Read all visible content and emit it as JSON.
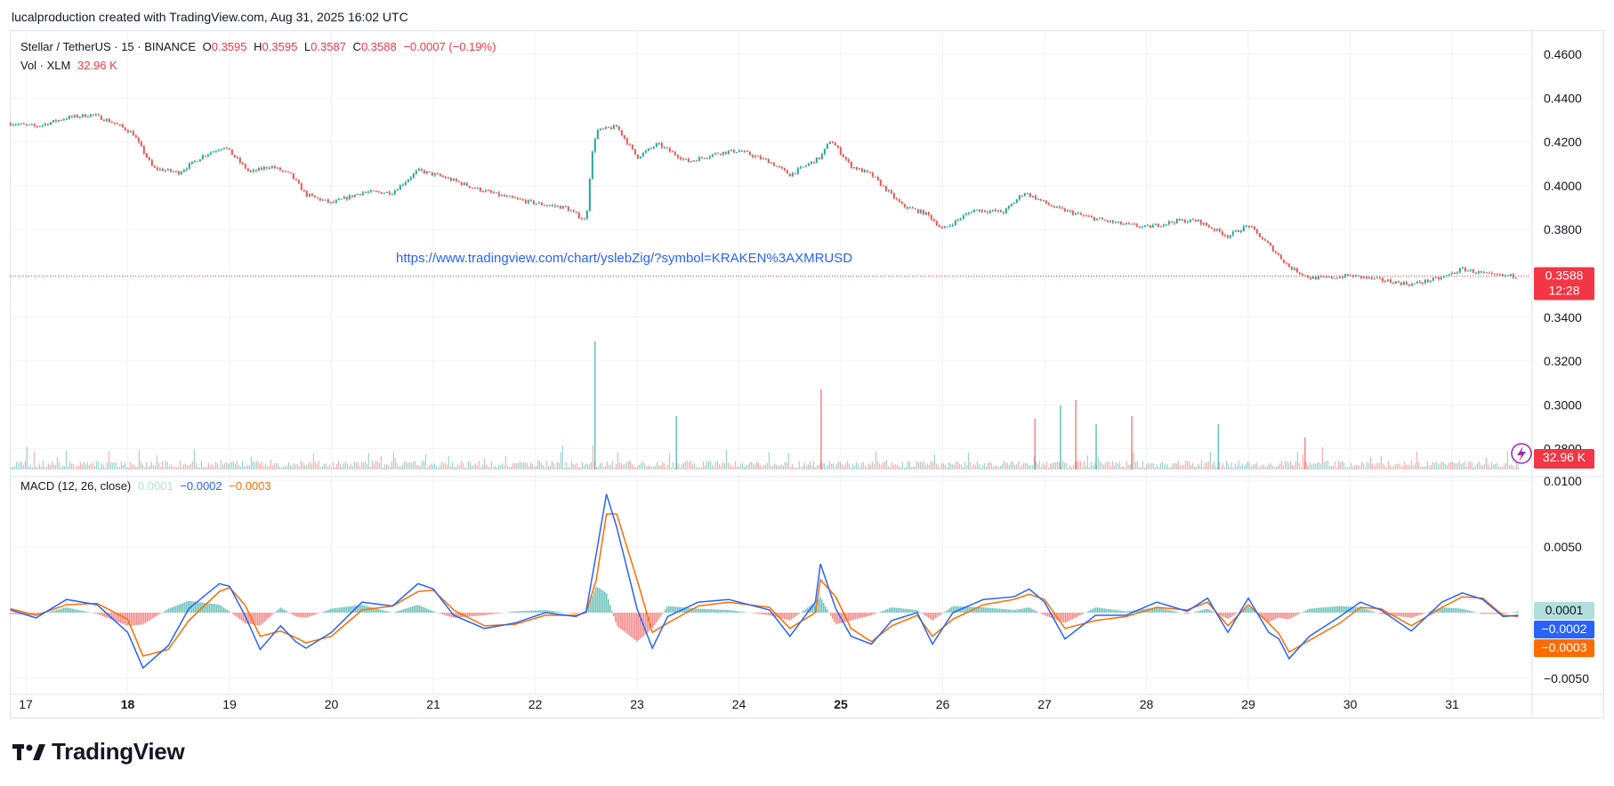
{
  "header": {
    "text": "lucalproduction created with TradingView.com, Aug 31, 2025 16:02 UTC"
  },
  "legend": {
    "symbol": "Stellar / TetherUS · 15 · BINANCE",
    "o_label": "O",
    "o_value": "0.3595",
    "h_label": "H",
    "h_value": "0.3595",
    "l_label": "L",
    "l_value": "0.3587",
    "c_label": "C",
    "c_value": "0.3588",
    "change": "−0.0007 (−0.19%)",
    "vol_label": "Vol · XLM",
    "vol_value": "32.96 K"
  },
  "macd_legend": {
    "label": "MACD (12, 26, close)",
    "hist": "0.0001",
    "macd": "−0.0002",
    "signal": "−0.0003"
  },
  "link_text": "https://www.tradingview.com/chart/yslebZig/?symbol=KRAKEN%3AXMRUSD",
  "price_badge": {
    "price": "0.3588",
    "countdown": "12:28"
  },
  "vol_badge": "32.96 K",
  "macd_badges": {
    "hist": "0.0001",
    "macd": "−0.0002",
    "signal": "−0.0003"
  },
  "footer": {
    "brand": "TradingView"
  },
  "colors": {
    "up": "#26a69a",
    "down": "#ef5350",
    "macd": "#2962ff",
    "signal": "#ff6d00",
    "badge_red": "#f23645",
    "hist_teal": "#b2dfdb",
    "link": "#2962ff"
  },
  "icons": {
    "lightning": "lightning-icon",
    "logo": "tradingview-logo-icon"
  },
  "chart_data": [
    {
      "type": "line",
      "title": "Stellar / TetherUS · 15 · BINANCE",
      "x_ticks": [
        "17",
        "18",
        "19",
        "20",
        "21",
        "22",
        "23",
        "24",
        "25",
        "26",
        "27",
        "28",
        "29",
        "30",
        "31"
      ],
      "y_ticks": [
        "0.4600",
        "0.4400",
        "0.4200",
        "0.4000",
        "0.3800",
        "0.3400",
        "0.3200",
        "0.3000",
        "0.2800"
      ],
      "ylim": [
        0.28,
        0.46
      ],
      "x_days": [
        16.85,
        17.1,
        17.4,
        17.65,
        17.85,
        18.05,
        18.25,
        18.5,
        18.75,
        18.95,
        19.2,
        19.4,
        19.6,
        19.75,
        20.0,
        20.3,
        20.6,
        20.85,
        21.1,
        21.4,
        21.7,
        22.0,
        22.3,
        22.5,
        22.55,
        22.6,
        22.8,
        23.0,
        23.2,
        23.5,
        23.8,
        24.0,
        24.3,
        24.5,
        24.8,
        24.9,
        25.1,
        25.3,
        25.6,
        25.85,
        26.0,
        26.3,
        26.6,
        26.8,
        27.1,
        27.4,
        27.7,
        28.0,
        28.3,
        28.5,
        28.8,
        29.0,
        29.2,
        29.4,
        29.6,
        29.8,
        30.0,
        30.3,
        30.6,
        30.9,
        31.1,
        31.4,
        31.65
      ],
      "price": [
        0.4285,
        0.427,
        0.431,
        0.4325,
        0.429,
        0.424,
        0.408,
        0.406,
        0.414,
        0.418,
        0.406,
        0.409,
        0.405,
        0.396,
        0.392,
        0.397,
        0.397,
        0.407,
        0.404,
        0.399,
        0.395,
        0.392,
        0.39,
        0.384,
        0.412,
        0.425,
        0.427,
        0.413,
        0.419,
        0.411,
        0.415,
        0.416,
        0.411,
        0.405,
        0.413,
        0.421,
        0.409,
        0.405,
        0.391,
        0.387,
        0.38,
        0.389,
        0.388,
        0.397,
        0.39,
        0.386,
        0.383,
        0.381,
        0.384,
        0.384,
        0.377,
        0.382,
        0.373,
        0.363,
        0.358,
        0.358,
        0.359,
        0.357,
        0.355,
        0.358,
        0.362,
        0.359,
        0.3588
      ]
    },
    {
      "type": "bar",
      "title": "Vol · XLM",
      "x_days": [
        22.58,
        24.8,
        23.38,
        26.9,
        27.15,
        27.3,
        27.5,
        27.85,
        28.7,
        29.55
      ],
      "values": [
        240,
        150,
        100,
        95,
        120,
        130,
        85,
        100,
        85,
        60
      ],
      "unit": "K"
    },
    {
      "type": "line",
      "title": "MACD (12, 26, close)",
      "y_ticks": [
        "0.0100",
        "0.0050",
        "−0.0050"
      ],
      "ylim": [
        -0.0055,
        0.0105
      ],
      "x_days": [
        16.85,
        17.1,
        17.4,
        17.7,
        18.0,
        18.15,
        18.4,
        18.6,
        18.9,
        19.0,
        19.15,
        19.3,
        19.5,
        19.65,
        19.75,
        20.0,
        20.3,
        20.6,
        20.85,
        21.0,
        21.2,
        21.5,
        21.8,
        22.1,
        22.4,
        22.5,
        22.6,
        22.7,
        22.8,
        23.0,
        23.15,
        23.3,
        23.6,
        23.9,
        24.3,
        24.5,
        24.75,
        24.8,
        24.95,
        25.1,
        25.3,
        25.5,
        25.75,
        25.9,
        26.1,
        26.4,
        26.7,
        26.85,
        27.0,
        27.2,
        27.5,
        27.8,
        28.1,
        28.4,
        28.6,
        28.8,
        29.0,
        29.2,
        29.3,
        29.4,
        29.6,
        29.9,
        30.1,
        30.3,
        30.6,
        30.9,
        31.1,
        31.3,
        31.5,
        31.65
      ],
      "macd": [
        0.0002,
        -0.0004,
        0.001,
        0.0006,
        -0.0015,
        -0.0042,
        -0.0025,
        0.0003,
        0.0022,
        0.002,
        -0.0002,
        -0.0028,
        -0.001,
        -0.0022,
        -0.0027,
        -0.0015,
        0.0008,
        0.0005,
        0.0022,
        0.0018,
        -0.0002,
        -0.0012,
        -0.0008,
        0.0,
        -0.0003,
        0.0001,
        0.0045,
        0.009,
        0.0065,
        0.0003,
        -0.0027,
        -0.0003,
        0.0008,
        0.001,
        0.0002,
        -0.0018,
        0.0008,
        0.0037,
        0.0003,
        -0.0018,
        -0.0024,
        -0.0006,
        0.0,
        -0.0024,
        0.0,
        0.001,
        0.0012,
        0.0018,
        0.0008,
        -0.002,
        -0.0002,
        -0.0002,
        0.0008,
        0.0001,
        0.0011,
        -0.0015,
        0.0011,
        -0.0015,
        -0.002,
        -0.0035,
        -0.0018,
        -0.0003,
        0.0008,
        0.0002,
        -0.0014,
        0.0008,
        0.0015,
        0.001,
        -0.0003,
        -0.0002
      ],
      "signal": [
        0.0003,
        -0.0002,
        0.0006,
        0.0007,
        -0.0005,
        -0.0033,
        -0.0028,
        -0.0006,
        0.0016,
        0.0019,
        0.0006,
        -0.0018,
        -0.0014,
        -0.0019,
        -0.0023,
        -0.0018,
        0.0002,
        0.0005,
        0.0016,
        0.0017,
        0.0002,
        -0.001,
        -0.0009,
        -0.0002,
        -0.0002,
        0.0,
        0.0025,
        0.0075,
        0.0075,
        0.0025,
        -0.0015,
        -0.0008,
        0.0005,
        0.0008,
        0.0004,
        -0.0012,
        0.0,
        0.0025,
        0.0012,
        -0.0012,
        -0.0022,
        -0.001,
        -0.0002,
        -0.0018,
        -0.0005,
        0.0006,
        0.001,
        0.0014,
        0.001,
        -0.0012,
        -0.0006,
        -0.0003,
        0.0004,
        0.0002,
        0.0008,
        -0.001,
        0.0006,
        -0.0008,
        -0.0016,
        -0.003,
        -0.0021,
        -0.0008,
        0.0004,
        0.0003,
        -0.001,
        0.0004,
        0.0012,
        0.0011,
        -0.0002,
        -0.0003
      ],
      "colors": {
        "macd": "#2962ff",
        "signal": "#ff6d00"
      }
    }
  ]
}
